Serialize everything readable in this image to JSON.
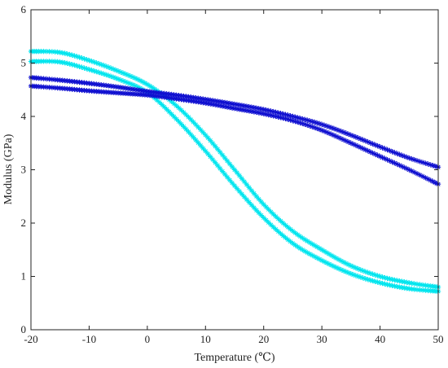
{
  "chart_data": {
    "type": "line",
    "xlabel": "Temperature (℃)",
    "ylabel": "Modulus (GPa)",
    "xlim": [
      -20,
      50
    ],
    "ylim": [
      0,
      6
    ],
    "xticks": [
      "-20",
      "-10",
      "0",
      "10",
      "20",
      "30",
      "40",
      "50"
    ],
    "yticks": [
      "0",
      "1",
      "2",
      "3",
      "4",
      "5",
      "6"
    ],
    "grid": false,
    "series": [
      {
        "color": "#00e5ee",
        "marker": "asterisk",
        "x": [
          -20,
          -15,
          -10,
          -5,
          0,
          5,
          10,
          15,
          20,
          25,
          30,
          35,
          40,
          45,
          50
        ],
        "y": [
          5.22,
          5.2,
          5.05,
          4.85,
          4.6,
          4.2,
          3.65,
          3.0,
          2.35,
          1.85,
          1.5,
          1.2,
          1.0,
          0.88,
          0.8
        ]
      },
      {
        "color": "#00e5ee",
        "marker": "asterisk",
        "x": [
          -20,
          -15,
          -10,
          -5,
          0,
          5,
          10,
          15,
          20,
          25,
          30,
          35,
          40,
          45,
          50
        ],
        "y": [
          5.03,
          5.02,
          4.88,
          4.7,
          4.45,
          3.95,
          3.35,
          2.7,
          2.1,
          1.62,
          1.3,
          1.05,
          0.88,
          0.77,
          0.72
        ]
      },
      {
        "color": "#1010d0",
        "marker": "asterisk",
        "x": [
          -20,
          -15,
          -10,
          -5,
          0,
          5,
          10,
          15,
          20,
          25,
          30,
          35,
          40,
          45,
          50
        ],
        "y": [
          4.73,
          4.68,
          4.62,
          4.55,
          4.47,
          4.4,
          4.32,
          4.23,
          4.13,
          4.0,
          3.85,
          3.65,
          3.43,
          3.22,
          3.05
        ]
      },
      {
        "color": "#1010d0",
        "marker": "asterisk",
        "x": [
          -20,
          -15,
          -10,
          -5,
          0,
          5,
          10,
          15,
          20,
          25,
          30,
          35,
          40,
          45,
          50
        ],
        "y": [
          4.57,
          4.53,
          4.48,
          4.44,
          4.4,
          4.33,
          4.25,
          4.15,
          4.05,
          3.92,
          3.74,
          3.5,
          3.25,
          3.0,
          2.73
        ]
      }
    ]
  }
}
